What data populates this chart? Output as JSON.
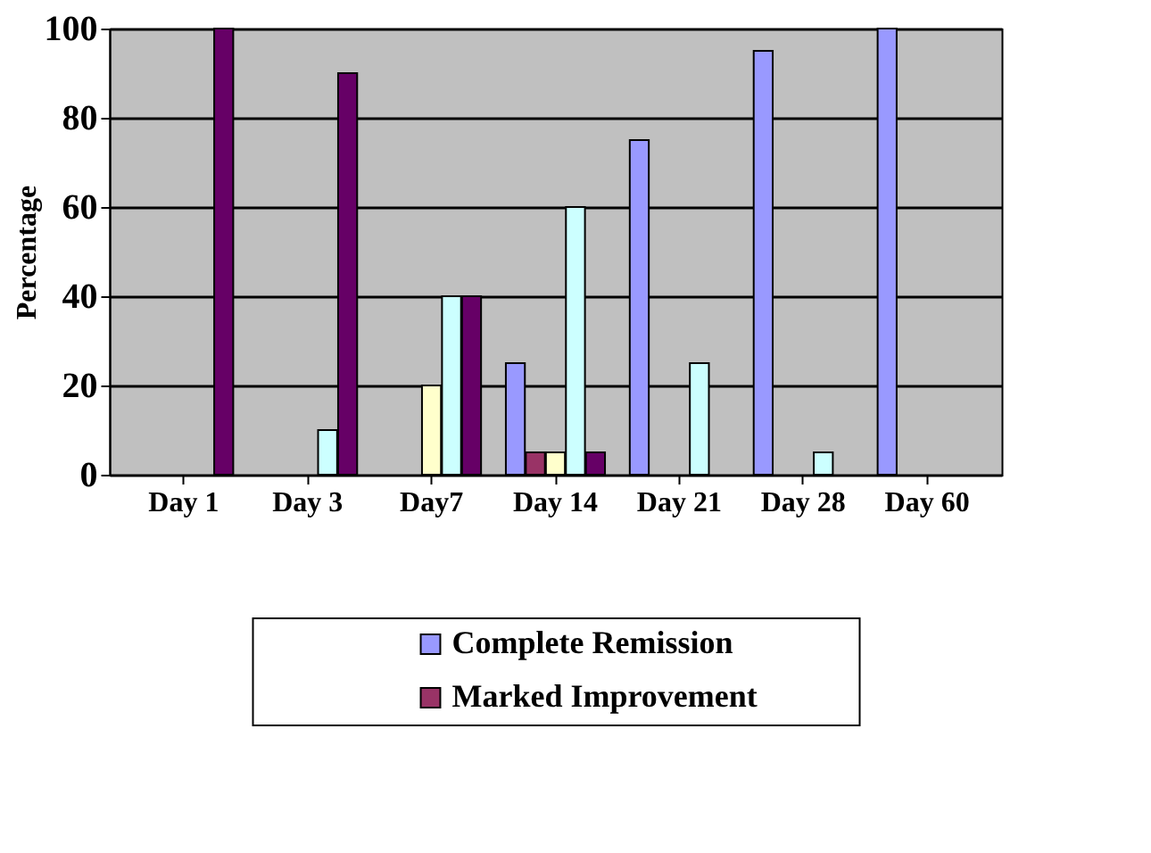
{
  "chart_data": {
    "type": "bar",
    "ylabel": "Percentage",
    "categories": [
      "Day 1",
      "Day 3",
      "Day7",
      "Day 14",
      "Day 21",
      "Day 28",
      "Day 60"
    ],
    "series": [
      {
        "name": "Complete Remission",
        "color": "#9999ff",
        "values": [
          0,
          0,
          0,
          25,
          75,
          95,
          100
        ]
      },
      {
        "name": "Marked Improvement",
        "color": "#993366",
        "values": [
          0,
          0,
          0,
          5,
          0,
          0,
          0
        ]
      },
      {
        "color": "#ffffcc",
        "values": [
          0,
          0,
          20,
          5,
          0,
          0,
          0
        ]
      },
      {
        "color": "#ccffff",
        "values": [
          0,
          10,
          40,
          60,
          25,
          5,
          0
        ]
      },
      {
        "color": "#660066",
        "values": [
          100,
          90,
          40,
          5,
          0,
          0,
          0
        ]
      }
    ],
    "ylim": [
      0,
      100
    ],
    "yticks": [
      0,
      20,
      40,
      60,
      80,
      100
    ],
    "grid": "y",
    "legend": "bottom"
  }
}
